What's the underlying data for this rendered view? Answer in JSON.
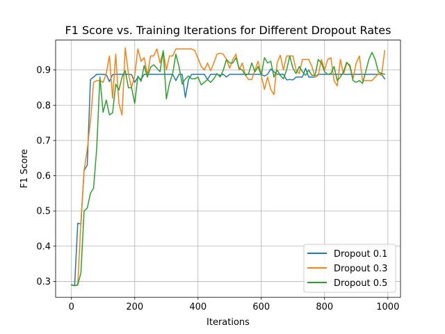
{
  "chart_data": {
    "type": "line",
    "title": "F1 Score vs. Training Iterations for Different Dropout Rates",
    "xlabel": "Iterations",
    "ylabel": "F1 Score",
    "xlim": [
      -50,
      1040
    ],
    "ylim": [
      0.255,
      0.985
    ],
    "xticks": [
      0,
      200,
      400,
      600,
      800,
      1000
    ],
    "yticks": [
      0.3,
      0.4,
      0.5,
      0.6,
      0.7,
      0.8,
      0.9
    ],
    "xtick_labels": [
      "0",
      "200",
      "400",
      "600",
      "800",
      "1000"
    ],
    "ytick_labels": [
      "0.3",
      "0.4",
      "0.5",
      "0.6",
      "0.7",
      "0.8",
      "0.9"
    ],
    "grid": true,
    "legend_position": "lower-right",
    "x": [
      0,
      10,
      20,
      30,
      40,
      50,
      60,
      70,
      80,
      90,
      100,
      110,
      120,
      130,
      140,
      150,
      160,
      170,
      180,
      190,
      200,
      210,
      220,
      230,
      240,
      250,
      260,
      270,
      280,
      290,
      300,
      310,
      320,
      330,
      340,
      350,
      360,
      370,
      380,
      390,
      400,
      410,
      420,
      430,
      440,
      450,
      460,
      470,
      480,
      490,
      500,
      510,
      520,
      530,
      540,
      550,
      560,
      570,
      580,
      590,
      600,
      610,
      620,
      630,
      640,
      650,
      660,
      670,
      680,
      690,
      700,
      710,
      720,
      730,
      740,
      750,
      760,
      770,
      780,
      790,
      800,
      810,
      820,
      830,
      840,
      850,
      860,
      870,
      880,
      890,
      900,
      910,
      920,
      930,
      940,
      950,
      960,
      970,
      980,
      990
    ],
    "series": [
      {
        "name": "Dropout 0.1",
        "color": "#1f77b4",
        "values": [
          0.29,
          0.288,
          0.465,
          0.463,
          0.615,
          0.63,
          0.873,
          0.88,
          0.888,
          0.888,
          0.888,
          0.887,
          0.867,
          0.887,
          0.888,
          0.888,
          0.888,
          0.888,
          0.888,
          0.887,
          0.865,
          0.88,
          0.873,
          0.888,
          0.888,
          0.888,
          0.888,
          0.888,
          0.888,
          0.888,
          0.888,
          0.888,
          0.888,
          0.87,
          0.888,
          0.888,
          0.822,
          0.873,
          0.888,
          0.888,
          0.888,
          0.888,
          0.888,
          0.873,
          0.888,
          0.888,
          0.888,
          0.885,
          0.888,
          0.88,
          0.888,
          0.888,
          0.888,
          0.888,
          0.888,
          0.888,
          0.888,
          0.888,
          0.888,
          0.888,
          0.888,
          0.883,
          0.888,
          0.903,
          0.895,
          0.888,
          0.888,
          0.888,
          0.872,
          0.873,
          0.872,
          0.88,
          0.88,
          0.88,
          0.905,
          0.88,
          0.88,
          0.88,
          0.888,
          0.888,
          0.888,
          0.888,
          0.888,
          0.888,
          0.888,
          0.888,
          0.888,
          0.888,
          0.888,
          0.888,
          0.888,
          0.888,
          0.888,
          0.888,
          0.888,
          0.888,
          0.888,
          0.888,
          0.888,
          0.875
        ]
      },
      {
        "name": "Dropout 0.3",
        "color": "#ff7f0e",
        "values": [
          0.29,
          0.288,
          0.29,
          0.47,
          0.615,
          0.675,
          0.755,
          0.865,
          0.87,
          0.87,
          0.865,
          0.89,
          0.94,
          0.82,
          0.945,
          0.805,
          0.772,
          0.963,
          0.89,
          0.85,
          0.885,
          0.96,
          0.925,
          0.935,
          0.885,
          0.94,
          0.94,
          0.96,
          0.92,
          0.953,
          0.9,
          0.94,
          0.94,
          0.96,
          0.96,
          0.96,
          0.96,
          0.96,
          0.96,
          0.955,
          0.933,
          0.91,
          0.9,
          0.92,
          0.898,
          0.92,
          0.945,
          0.948,
          0.945,
          0.93,
          0.905,
          0.93,
          0.945,
          0.9,
          0.92,
          0.885,
          0.873,
          0.873,
          0.9,
          0.925,
          0.885,
          0.845,
          0.88,
          0.845,
          0.83,
          0.92,
          0.942,
          0.9,
          0.94,
          0.94,
          0.94,
          0.9,
          0.89,
          0.93,
          0.93,
          0.93,
          0.91,
          0.88,
          0.885,
          0.93,
          0.9,
          0.93,
          0.935,
          0.87,
          0.855,
          0.93,
          0.888,
          0.92,
          0.915,
          0.875,
          0.92,
          0.94,
          0.87,
          0.87,
          0.87,
          0.87,
          0.88,
          0.89,
          0.885,
          0.955
        ]
      },
      {
        "name": "Dropout 0.5",
        "color": "#2ca02c",
        "values": [
          0.29,
          0.288,
          0.29,
          0.325,
          0.5,
          0.508,
          0.55,
          0.565,
          0.68,
          0.88,
          0.78,
          0.815,
          0.773,
          0.778,
          0.86,
          0.843,
          0.88,
          0.898,
          0.85,
          0.85,
          0.805,
          0.883,
          0.868,
          0.913,
          0.88,
          0.908,
          0.915,
          0.905,
          0.895,
          0.955,
          0.818,
          0.863,
          0.89,
          0.945,
          0.91,
          0.86,
          0.875,
          0.883,
          0.875,
          0.875,
          0.88,
          0.858,
          0.865,
          0.873,
          0.865,
          0.875,
          0.89,
          0.88,
          0.9,
          0.93,
          0.92,
          0.92,
          0.935,
          0.905,
          0.9,
          0.885,
          0.89,
          0.92,
          0.895,
          0.91,
          0.885,
          0.935,
          0.92,
          0.925,
          0.88,
          0.9,
          0.885,
          0.875,
          0.9,
          0.94,
          0.905,
          0.89,
          0.91,
          0.895,
          0.885,
          0.9,
          0.885,
          0.885,
          0.93,
          0.92,
          0.895,
          0.888,
          0.89,
          0.91,
          0.87,
          0.88,
          0.895,
          0.922,
          0.91,
          0.87,
          0.865,
          0.87,
          0.862,
          0.895,
          0.93,
          0.95,
          0.93,
          0.895,
          0.89,
          0.888
        ]
      }
    ]
  }
}
